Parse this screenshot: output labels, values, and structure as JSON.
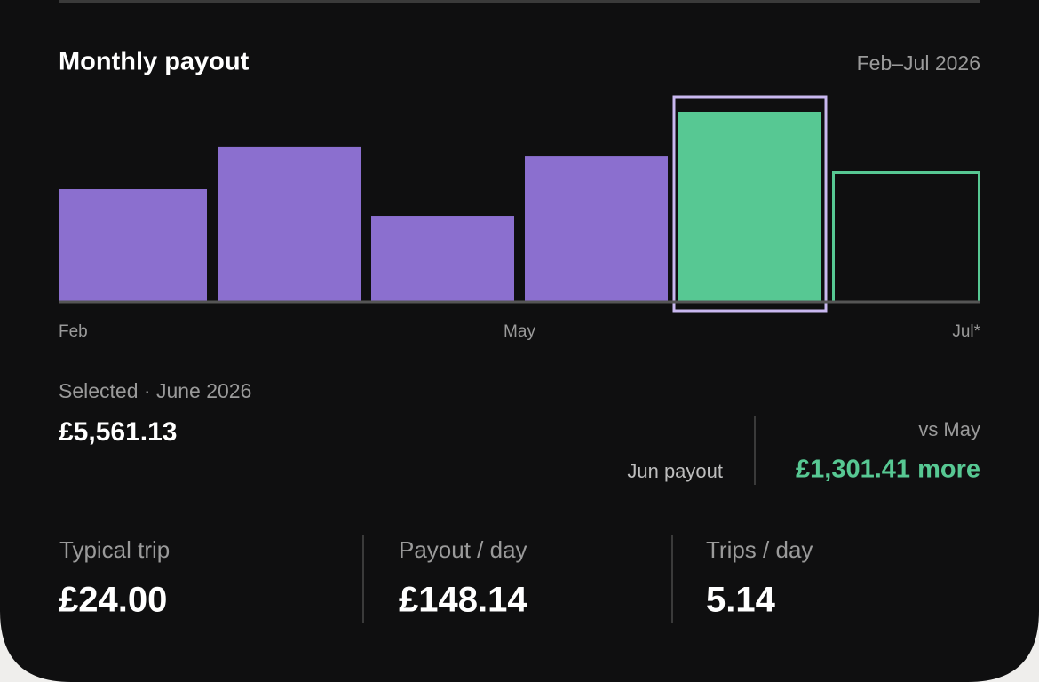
{
  "chart_data": {
    "type": "bar",
    "title": "Monthly payout",
    "subtitle": "Feb–Jul 2026",
    "categories": [
      "Feb",
      null,
      null,
      "May",
      null,
      "Jul*"
    ],
    "values": [
      3300,
      4550,
      2520,
      4259.72,
      5561.13,
      3820
    ],
    "colors": [
      "#8b6fcf",
      "#8b6fcf",
      "#8b6fcf",
      "#8b6fcf",
      "#57c893",
      "#57c893"
    ],
    "outlined": [
      false,
      false,
      false,
      false,
      false,
      true
    ],
    "selected": 4,
    "selection_color": "#c9b8f0"
  },
  "selection": {
    "label": "Selected · June 2026",
    "amount": "£5,561.13",
    "caption": "Jun payout",
    "compare_label": "vs May",
    "compare_value": "£1,301.41 more"
  },
  "stats": [
    {
      "label": "Typical trip",
      "value": "£24.00"
    },
    {
      "label": "Payout / day",
      "value": "£148.14"
    },
    {
      "label": "Trips / day",
      "value": "5.14"
    }
  ]
}
